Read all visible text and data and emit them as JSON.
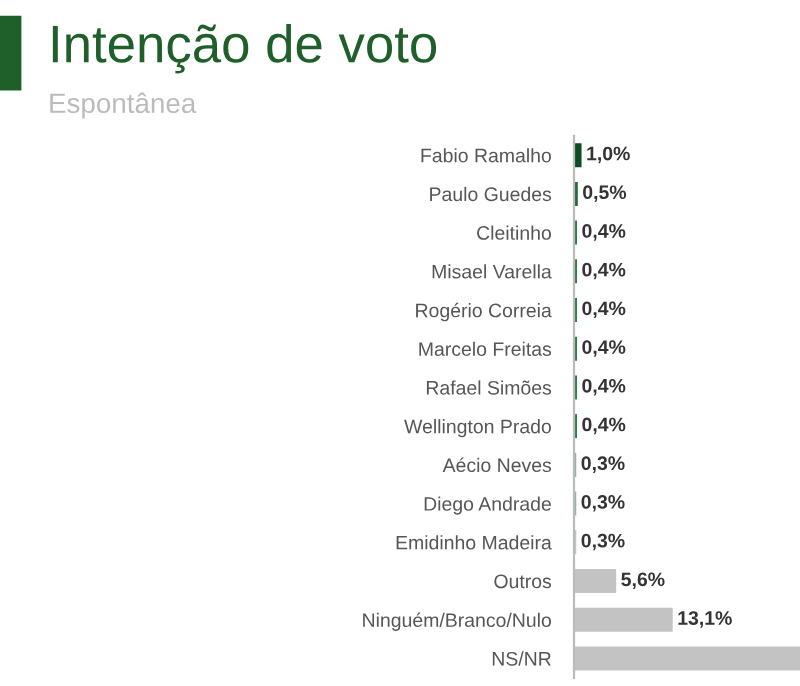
{
  "chart_data": {
    "type": "bar",
    "orientation": "horizontal",
    "title": "Intenção de voto",
    "subtitle": "Espontânea",
    "categories": [
      "Fabio Ramalho",
      "Paulo Guedes",
      "Cleitinho",
      "Misael Varella",
      "Rogério Correia",
      "Marcelo Freitas",
      "Rafael Simões",
      "Wellington Prado",
      "Aécio Neves",
      "Diego Andrade",
      "Emidinho Madeira",
      "Outros",
      "Ninguém/Branco/Nulo",
      "NS/NR"
    ],
    "values": [
      1.0,
      0.5,
      0.4,
      0.4,
      0.4,
      0.4,
      0.4,
      0.4,
      0.3,
      0.3,
      0.3,
      5.6,
      13.1,
      30
    ],
    "value_labels": [
      "1,0%",
      "0,5%",
      "0,4%",
      "0,4%",
      "0,4%",
      "0,4%",
      "0,4%",
      "0,4%",
      "0,3%",
      "0,3%",
      "0,3%",
      "5,6%",
      "13,1%",
      null
    ],
    "colors": [
      "#0e4d22",
      "#1e6b35",
      "#2e7d45",
      "#2e7d45",
      "#2e7d45",
      "#2e7d45",
      "#2e7d45",
      "#2e7d45",
      "#8fb89a",
      "#8fb89a",
      "#b5c9ba",
      "#c3c3c3",
      "#c3c3c3",
      "#c3c3c3"
    ],
    "grid": false,
    "legend": false
  }
}
